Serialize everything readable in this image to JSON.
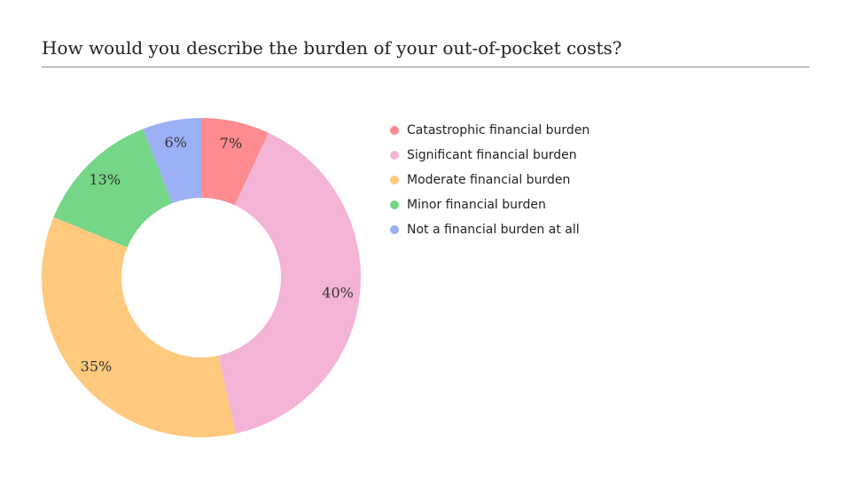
{
  "chart_data": {
    "type": "pie",
    "title": "How would you describe the burden of your out-of-pocket costs?",
    "donut": true,
    "legend_position": "right",
    "categories": [
      "Catastrophic financial burden",
      "Significant financial burden",
      "Moderate financial burden",
      "Minor financial burden",
      "Not a financial burden at all"
    ],
    "values": [
      7,
      40,
      35,
      13,
      6
    ],
    "labels": [
      "7%",
      "40%",
      "35%",
      "13%",
      "6%"
    ],
    "colors": [
      "#fd8b8f",
      "#f3b4d7",
      "#ffc97e",
      "#74d686",
      "#9bb0f5"
    ]
  }
}
